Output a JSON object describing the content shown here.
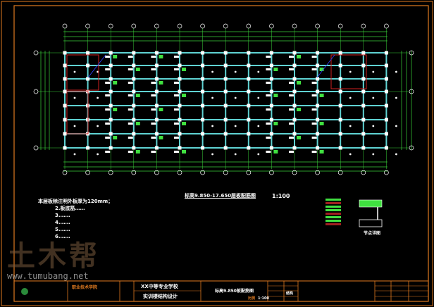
{
  "drawing": {
    "plan_title": "标高9.850-17.650层板配筋图",
    "scale": "1:100",
    "notes": [
      "本层板除注明外板厚为120mm；",
      "2.板底筋……",
      "3.……",
      "4.……",
      "5.……",
      "6.……"
    ],
    "detail_label": "节点详图"
  },
  "title_block": {
    "school": "职业技术学院",
    "project": "XX中等专业学校",
    "subproject": "实训楼结构设计",
    "drawing_name": "标高9.850板配筋图",
    "scale_label": "比例",
    "scale_value": "1:100",
    "major": "结构"
  },
  "watermark": {
    "logo": "土木帮",
    "url": "www.tumubang.net"
  },
  "colors": {
    "frame": "#e07a20",
    "beam": "#5fd3d3",
    "axis": "#3ad23a",
    "column": "#ffffff",
    "wall": "#d02020",
    "rebar": "#40e040"
  }
}
